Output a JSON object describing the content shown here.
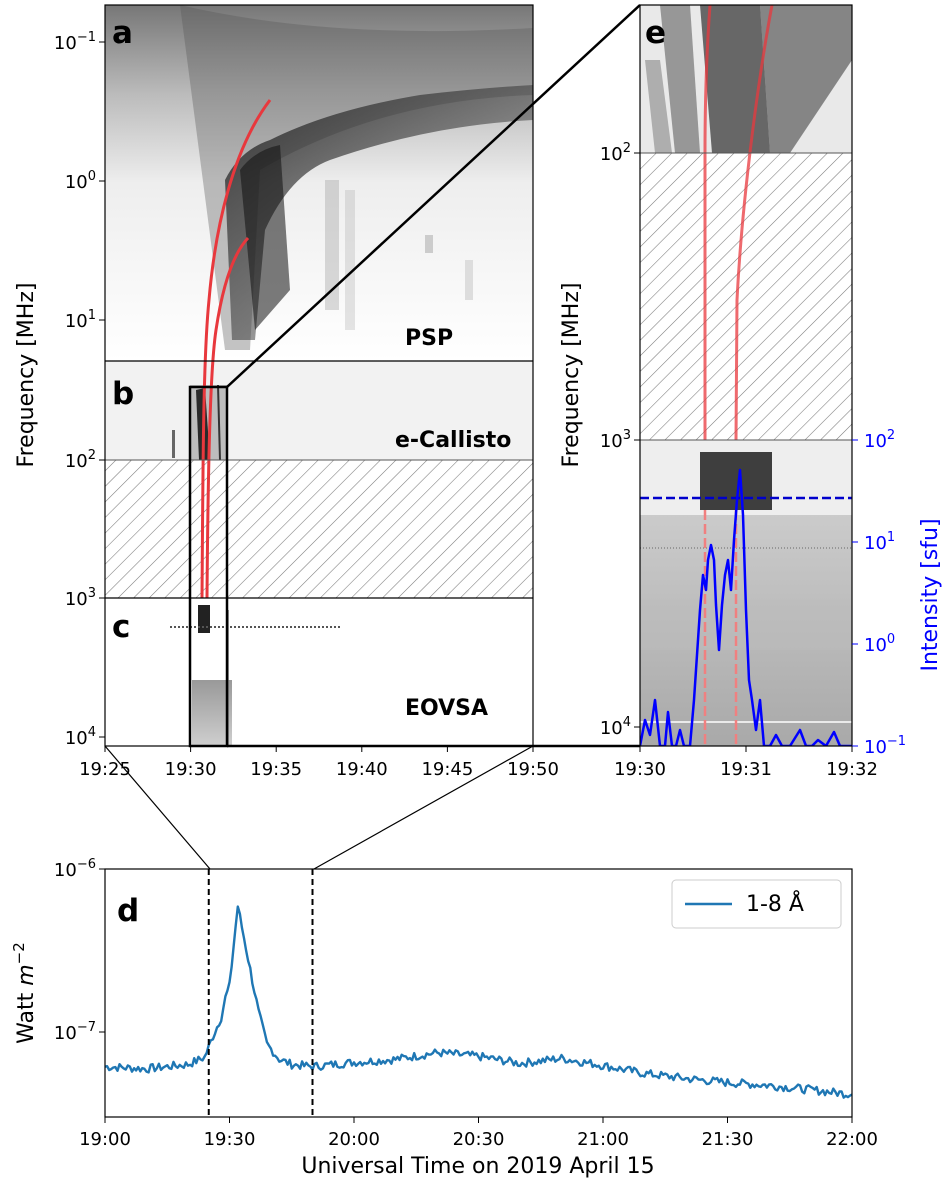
{
  "chart_data": [
    {
      "panel": "a-b-c",
      "type": "heatmap",
      "ylabel": "Frequency [MHz]",
      "y_scale": "log",
      "y_inverted": true,
      "x_ticks": [
        "19:25",
        "19:30",
        "19:35",
        "19:40",
        "19:45",
        "19:50"
      ],
      "y_ticks": [
        {
          "base": "10",
          "exp": "−1"
        },
        {
          "base": "10",
          "exp": "0"
        },
        {
          "base": "10",
          "exp": "1"
        },
        {
          "base": "10",
          "exp": "2"
        },
        {
          "base": "10",
          "exp": "3"
        },
        {
          "base": "10",
          "exp": "4"
        }
      ],
      "panel_letters": [
        "a",
        "b",
        "c"
      ],
      "instrument_labels": [
        "PSP",
        "e-Callisto",
        "EOVSA"
      ],
      "hatched_band_mhz": [
        100,
        1000
      ],
      "zoom_box": {
        "x": [
          "19:30",
          "19:32"
        ],
        "y_mhz": [
          30,
          12000
        ]
      },
      "fit_curves": [
        "red type III drift fit 1",
        "red type III drift fit 2"
      ],
      "colors": {
        "curve": "#e8383d",
        "hatch": "#7a7a7a"
      }
    },
    {
      "panel": "e",
      "type": "heatmap",
      "ylabel": "Frequency [MHz]",
      "y2label": "Intensity [sfu]",
      "y_scale": "log",
      "x_ticks": [
        "19:30",
        "19:31",
        "19:32"
      ],
      "y_ticks": [
        {
          "base": "10",
          "exp": "2"
        },
        {
          "base": "10",
          "exp": "3"
        },
        {
          "base": "10",
          "exp": "4"
        }
      ],
      "y2_ticks": [
        {
          "base": "10",
          "exp": "2"
        },
        {
          "base": "10",
          "exp": "1"
        },
        {
          "base": "10",
          "exp": "0"
        },
        {
          "base": "10",
          "exp": "−1"
        }
      ],
      "panel_letter": "e",
      "hatched_band_mhz": [
        100,
        1000
      ],
      "intensity_series_color": "#0000ff",
      "intensity_threshold_sfu": 28
    },
    {
      "panel": "d",
      "type": "line",
      "xlabel": "Universal Time on 2019 April 15",
      "ylabel_base": "Watt ",
      "ylabel_unit": "m",
      "ylabel_exp": "−2",
      "y_scale": "log",
      "ylim": [
        3.3e-08,
        1e-06
      ],
      "xlim": [
        "19:00",
        "22:00"
      ],
      "x_ticks": [
        "19:00",
        "19:30",
        "20:00",
        "20:30",
        "21:00",
        "21:30",
        "22:00"
      ],
      "y_ticks": [
        {
          "base": "10",
          "exp": "−6",
          "value": 1e-06
        },
        {
          "base": "10",
          "exp": "−7",
          "value": 1e-07
        }
      ],
      "panel_letter": "d",
      "legend": "1-8 Å",
      "legend_position": "top-right",
      "series_color": "#1f77b4",
      "marked_window": [
        "19:25",
        "19:50"
      ],
      "series": [
        {
          "name": "1-8 Å",
          "points": [
            [
              "19:00",
              6.6e-08
            ],
            [
              "19:05",
              6.5e-08
            ],
            [
              "19:10",
              6.4e-08
            ],
            [
              "19:15",
              6.6e-08
            ],
            [
              "19:20",
              6.8e-08
            ],
            [
              "19:24",
              7.5e-08
            ],
            [
              "19:26",
              1e-07
            ],
            [
              "19:28",
              1.3e-07
            ],
            [
              "19:29",
              1.7e-07
            ],
            [
              "19:30",
              2e-07
            ],
            [
              "19:31",
              3.5e-07
            ],
            [
              "19:32",
              6e-07
            ],
            [
              "19:33",
              4.5e-07
            ],
            [
              "19:35",
              2.5e-07
            ],
            [
              "19:37",
              1.4e-07
            ],
            [
              "19:39",
              9e-08
            ],
            [
              "19:42",
              7.3e-08
            ],
            [
              "19:45",
              6.8e-08
            ],
            [
              "19:50",
              6.6e-08
            ],
            [
              "20:00",
              7e-08
            ],
            [
              "20:10",
              7.3e-08
            ],
            [
              "20:20",
              8e-08
            ],
            [
              "20:30",
              7.6e-08
            ],
            [
              "20:40",
              6.9e-08
            ],
            [
              "20:50",
              7.4e-08
            ],
            [
              "21:00",
              6.7e-08
            ],
            [
              "21:10",
              6e-08
            ],
            [
              "21:20",
              5.6e-08
            ],
            [
              "21:30",
              5.3e-08
            ],
            [
              "21:40",
              5.1e-08
            ],
            [
              "21:50",
              4.8e-08
            ],
            [
              "22:00",
              4.5e-08
            ]
          ]
        }
      ]
    }
  ]
}
